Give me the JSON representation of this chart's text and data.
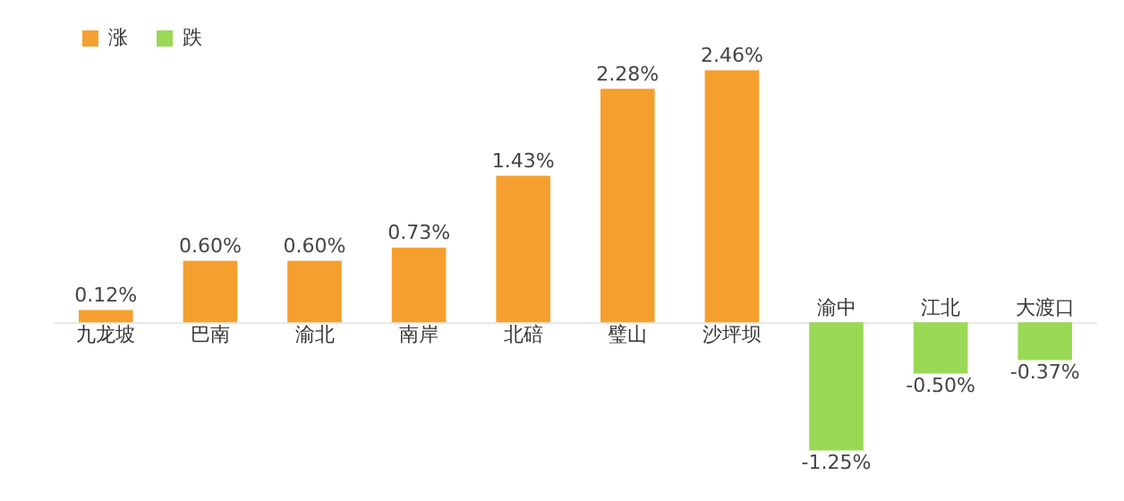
{
  "chart_data": {
    "type": "bar",
    "stacked": true,
    "legend": "top left",
    "tick_labels": "x",
    "grid": false,
    "categories": [
      "九龙坡",
      "巴南",
      "渝北",
      "南岸",
      "北碚",
      "璧山",
      "沙坪坝",
      "渝中",
      "江北",
      "大渡口"
    ],
    "series": [
      {
        "name": "涨",
        "color": "#f5a02e",
        "values": [
          0.12,
          0.6,
          0.6,
          0.73,
          1.43,
          2.28,
          2.46,
          null,
          null,
          null
        ],
        "value_labels": [
          "0.12%",
          "0.60%",
          "0.60%",
          "0.73%",
          "1.43%",
          "2.28%",
          "2.46%",
          null,
          null,
          null
        ]
      },
      {
        "name": "跌",
        "color": "#99d955",
        "values": [
          null,
          null,
          null,
          null,
          null,
          null,
          null,
          -1.25,
          -0.5,
          -0.37
        ],
        "value_labels": [
          null,
          null,
          null,
          null,
          null,
          null,
          null,
          "-1.25%",
          "-0.50%",
          "-0.37%"
        ]
      }
    ]
  }
}
